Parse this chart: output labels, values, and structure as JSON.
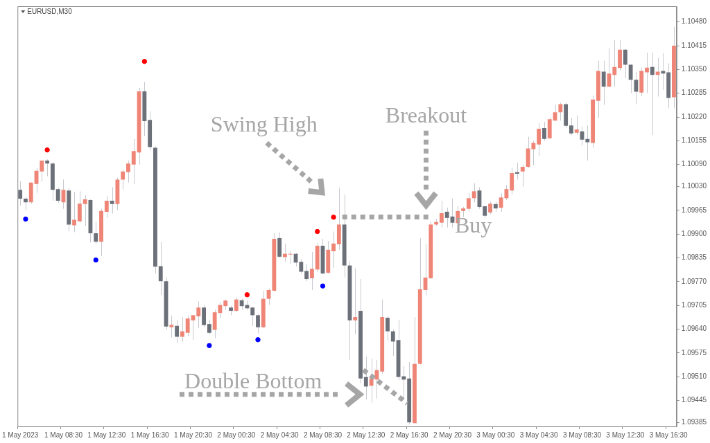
{
  "chart_data": {
    "type": "candlestick",
    "title": "EURUSD,M30",
    "categories": [
      "1 May 2023",
      null,
      null,
      null,
      null,
      null,
      null,
      null,
      "1 May 08:30",
      null,
      null,
      null,
      null,
      null,
      null,
      null,
      "1 May 12:30",
      null,
      null,
      null,
      null,
      null,
      null,
      null,
      "1 May 16:30",
      null,
      null,
      null,
      null,
      null,
      null,
      null,
      "1 May 20:30",
      null,
      null,
      null,
      null,
      null,
      null,
      null,
      "2 May 00:30",
      null,
      null,
      null,
      null,
      null,
      null,
      null,
      "2 May 04:30",
      null,
      null,
      null,
      null,
      null,
      null,
      null,
      "2 May 08:30",
      null,
      null,
      null,
      null,
      null,
      null,
      null,
      "2 May 12:30",
      null,
      null,
      null,
      null,
      null,
      null,
      null,
      "2 May 16:30",
      null,
      null,
      null,
      null,
      null,
      null,
      null,
      "2 May 20:30",
      null,
      null,
      null,
      null,
      null,
      null,
      null,
      "3 May 00:30",
      null,
      null,
      null,
      null,
      null,
      null,
      null,
      "3 May 04:30",
      null,
      null,
      null,
      null,
      null,
      null,
      null,
      "3 May 08:30",
      null,
      null,
      null,
      null,
      null,
      null,
      null,
      "3 May 12:30",
      null,
      null,
      null,
      null,
      null,
      null,
      null,
      "3 May 16:30",
      null
    ],
    "ylim": [
      1.09374,
      1.10523
    ],
    "yticks": [
      {
        "value": 1.1048,
        "label": "1.10480"
      },
      {
        "value": 1.10415,
        "label": "1.10415"
      },
      {
        "value": 1.1035,
        "label": "1.10350"
      },
      {
        "value": 1.10285,
        "label": "1.10285"
      },
      {
        "value": 1.1022,
        "label": "1.10220"
      },
      {
        "value": 1.10155,
        "label": "1.10155"
      },
      {
        "value": 1.1009,
        "label": "1.10090"
      },
      {
        "value": 1.1003,
        "label": "1.10030"
      },
      {
        "value": 1.09965,
        "label": "1.09965"
      },
      {
        "value": 1.099,
        "label": "1.09900"
      },
      {
        "value": 1.09835,
        "label": "1.09835"
      },
      {
        "value": 1.0977,
        "label": "1.09770"
      },
      {
        "value": 1.09705,
        "label": "1.09705"
      },
      {
        "value": 1.0964,
        "label": "1.09640"
      },
      {
        "value": 1.09575,
        "label": "1.09575"
      },
      {
        "value": 1.0951,
        "label": "1.09510"
      },
      {
        "value": 1.09445,
        "label": "1.09445"
      },
      {
        "value": 1.09385,
        "label": "1.09385"
      }
    ],
    "ohlc": [
      [
        1.10021,
        1.10045,
        1.09978,
        1.09997
      ],
      [
        1.09997,
        1.10002,
        1.09965,
        1.09987
      ],
      [
        1.09987,
        1.10041,
        1.09983,
        1.10041
      ],
      [
        1.10037,
        1.1008,
        1.10013,
        1.10073
      ],
      [
        1.10071,
        1.10101,
        1.10043,
        1.10101
      ],
      [
        1.10101,
        1.10104,
        1.10058,
        1.10093
      ],
      [
        1.10093,
        1.10097,
        1.09991,
        1.10021
      ],
      [
        1.10023,
        1.10026,
        1.09985,
        1.09991
      ],
      [
        1.09987,
        1.10049,
        1.09969,
        1.10021
      ],
      [
        1.10019,
        1.10026,
        1.09907,
        1.09926
      ],
      [
        1.09924,
        1.10015,
        1.09905,
        1.09939
      ],
      [
        1.09935,
        1.10017,
        1.09931,
        1.09983
      ],
      [
        1.09982,
        1.10006,
        1.09922,
        1.09995
      ],
      [
        1.09993,
        1.09995,
        1.09877,
        1.09902
      ],
      [
        1.09902,
        1.09933,
        1.09872,
        1.09879
      ],
      [
        1.09879,
        1.09969,
        1.0984,
        1.09963
      ],
      [
        1.09961,
        1.10004,
        1.09944,
        1.09991
      ],
      [
        1.09991,
        1.10028,
        1.09956,
        1.09982
      ],
      [
        1.09982,
        1.10054,
        1.09965,
        1.10049
      ],
      [
        1.10049,
        1.10076,
        1.10021,
        1.10071
      ],
      [
        1.10069,
        1.10101,
        1.10041,
        1.10093
      ],
      [
        1.1009,
        1.1016,
        1.10036,
        1.10127
      ],
      [
        1.10123,
        1.103,
        1.1009,
        1.1029
      ],
      [
        1.1029,
        1.10316,
        1.10168,
        1.10209
      ],
      [
        1.10212,
        1.10236,
        1.10129,
        1.10138
      ],
      [
        1.10136,
        1.1014,
        1.09792,
        1.09811
      ],
      [
        1.09812,
        1.09879,
        1.09734,
        1.09771
      ],
      [
        1.09771,
        1.09781,
        1.09638,
        1.09647
      ],
      [
        1.09645,
        1.09677,
        1.09617,
        1.09652
      ],
      [
        1.09649,
        1.09665,
        1.09602,
        1.09619
      ],
      [
        1.09619,
        1.09673,
        1.09606,
        1.09634
      ],
      [
        1.0963,
        1.09677,
        1.09621,
        1.09669
      ],
      [
        1.09664,
        1.09678,
        1.0961,
        1.09678
      ],
      [
        1.09675,
        1.09716,
        1.09643,
        1.09699
      ],
      [
        1.09699,
        1.09706,
        1.09645,
        1.09651
      ],
      [
        1.09654,
        1.09665,
        1.09625,
        1.0963
      ],
      [
        1.09638,
        1.09693,
        1.09615,
        1.09686
      ],
      [
        1.09684,
        1.09714,
        1.09671,
        1.09706
      ],
      [
        1.09703,
        1.09721,
        1.09693,
        1.09718
      ],
      [
        1.09699,
        1.09704,
        1.09678,
        1.0969
      ],
      [
        1.0969,
        1.09727,
        1.09686,
        1.09721
      ],
      [
        1.09719,
        1.09723,
        1.09693,
        1.09703
      ],
      [
        1.09706,
        1.09718,
        1.09693,
        1.09697
      ],
      [
        1.09699,
        1.09701,
        1.09649,
        1.09678
      ],
      [
        1.09678,
        1.09682,
        1.09628,
        1.09645
      ],
      [
        1.09645,
        1.09744,
        1.09643,
        1.09723
      ],
      [
        1.09723,
        1.09751,
        1.09706,
        1.09747
      ],
      [
        1.09745,
        1.09902,
        1.09742,
        1.09887
      ],
      [
        1.09889,
        1.09904,
        1.09835,
        1.09838
      ],
      [
        1.09837,
        1.09874,
        1.09824,
        1.09846
      ],
      [
        1.09844,
        1.09853,
        1.09818,
        1.09846
      ],
      [
        1.09846,
        1.09848,
        1.09811,
        1.09822
      ],
      [
        1.09824,
        1.09831,
        1.09792,
        1.09797
      ],
      [
        1.09799,
        1.09818,
        1.09771,
        1.09777
      ],
      [
        1.09779,
        1.09851,
        1.09747,
        1.09805
      ],
      [
        1.09803,
        1.09876,
        1.09796,
        1.09868
      ],
      [
        1.09868,
        1.09887,
        1.0979,
        1.09792
      ],
      [
        1.09794,
        1.09881,
        1.09792,
        1.09857
      ],
      [
        1.09853,
        1.09907,
        1.09807,
        1.09874
      ],
      [
        1.09872,
        1.10026,
        1.09857,
        1.09926
      ],
      [
        1.09926,
        1.10008,
        1.09781,
        1.09814
      ],
      [
        1.09814,
        1.09825,
        1.09556,
        1.09664
      ],
      [
        1.09664,
        1.09807,
        1.09625,
        1.09673
      ],
      [
        1.0969,
        1.09777,
        1.09491,
        1.09505
      ],
      [
        1.09509,
        1.09565,
        1.09448,
        1.09483
      ],
      [
        1.09485,
        1.09559,
        1.09439,
        1.09505
      ],
      [
        1.09502,
        1.09556,
        1.0945,
        1.09528
      ],
      [
        1.09524,
        1.09721,
        1.09518,
        1.09673
      ],
      [
        1.09671,
        1.09675,
        1.09608,
        1.09634
      ],
      [
        1.09634,
        1.09639,
        1.09567,
        1.09606
      ],
      [
        1.0961,
        1.09665,
        1.095,
        1.09509
      ],
      [
        1.09511,
        1.09539,
        1.09446,
        1.09502
      ],
      [
        1.09505,
        1.0955,
        1.09379,
        1.09385
      ],
      [
        1.09383,
        1.09673,
        1.09381,
        1.09545
      ],
      [
        1.09545,
        1.09889,
        1.09543,
        1.09749
      ],
      [
        1.09747,
        1.09872,
        1.09732,
        1.09781
      ],
      [
        1.09779,
        1.09935,
        1.09777,
        1.09926
      ],
      [
        1.09926,
        1.09941,
        1.09922,
        1.09933
      ],
      [
        1.09931,
        1.09991,
        1.09918,
        1.09957
      ],
      [
        1.09961,
        1.09972,
        1.09918,
        1.09944
      ],
      [
        1.09948,
        1.09997,
        1.09918,
        1.09931
      ],
      [
        1.0993,
        1.09976,
        1.09924,
        1.09963
      ],
      [
        1.09963,
        1.09974,
        1.09946,
        1.0997
      ],
      [
        1.09969,
        1.10011,
        1.09961,
        1.09998
      ],
      [
        1.09998,
        1.10039,
        1.09987,
        1.10017
      ],
      [
        1.10019,
        1.10028,
        1.09969,
        1.09974
      ],
      [
        1.09976,
        1.09978,
        1.09944,
        1.0995
      ],
      [
        1.09959,
        1.09989,
        1.09954,
        1.09983
      ],
      [
        1.09982,
        1.09989,
        1.09961,
        1.0997
      ],
      [
        1.09972,
        1.10011,
        1.09961,
        1.1
      ],
      [
        1.09998,
        1.10034,
        1.09993,
        1.10023
      ],
      [
        1.10019,
        1.10082,
        1.10008,
        1.10067
      ],
      [
        1.10069,
        1.10095,
        1.10049,
        1.10065
      ],
      [
        1.10071,
        1.1009,
        1.1003,
        1.10084
      ],
      [
        1.10084,
        1.10166,
        1.1008,
        1.10134
      ],
      [
        1.10132,
        1.10155,
        1.10088,
        1.10149
      ],
      [
        1.10145,
        1.10203,
        1.10114,
        1.10188
      ],
      [
        1.1019,
        1.10207,
        1.10155,
        1.1016
      ],
      [
        1.10162,
        1.10218,
        1.1016,
        1.10214
      ],
      [
        1.1021,
        1.10253,
        1.1021,
        1.10233
      ],
      [
        1.10233,
        1.10259,
        1.1021,
        1.10255
      ],
      [
        1.10255,
        1.10259,
        1.1019,
        1.10196
      ],
      [
        1.10197,
        1.10218,
        1.10171,
        1.10175
      ],
      [
        1.10177,
        1.10225,
        1.10171,
        1.10186
      ],
      [
        1.10181,
        1.10194,
        1.10142,
        1.10158
      ],
      [
        1.1016,
        1.10197,
        1.10101,
        1.10151
      ],
      [
        1.10149,
        1.10279,
        1.10136,
        1.10268
      ],
      [
        1.10264,
        1.10374,
        1.10218,
        1.10346
      ],
      [
        1.10344,
        1.10374,
        1.10253,
        1.10303
      ],
      [
        1.10303,
        1.10408,
        1.10302,
        1.10339
      ],
      [
        1.10335,
        1.1043,
        1.10303,
        1.10357
      ],
      [
        1.10354,
        1.1043,
        1.10346,
        1.10404
      ],
      [
        1.10404,
        1.10406,
        1.10326,
        1.10363
      ],
      [
        1.10363,
        1.10365,
        1.10285,
        1.10322
      ],
      [
        1.10322,
        1.10344,
        1.10255,
        1.10289
      ],
      [
        1.10287,
        1.10355,
        1.10277,
        1.10346
      ],
      [
        1.10342,
        1.10396,
        1.10285,
        1.10355
      ],
      [
        1.10357,
        1.10396,
        1.10171,
        1.10335
      ],
      [
        1.10335,
        1.10382,
        1.10276,
        1.10344
      ],
      [
        1.10346,
        1.10395,
        1.10294,
        1.10339
      ],
      [
        1.10342,
        1.10367,
        1.10244,
        1.10272
      ],
      [
        1.10274,
        1.10467,
        1.10244,
        1.10415
      ]
    ],
    "colors": [
      "#6c7079",
      "#6c7079",
      "#ef8576",
      "#ef8576",
      "#ef8576",
      "#6c7079",
      "#6c7079",
      "#6c7079",
      "#ef8576",
      "#6c7079",
      "#ef8576",
      "#ef8576",
      "#ef8576",
      "#6c7079",
      "#6c7079",
      "#ef8576",
      "#ef8576",
      "#6c7079",
      "#ef8576",
      "#ef8576",
      "#ef8576",
      "#ef8576",
      "#ef8576",
      "#6c7079",
      "#6c7079",
      "#6c7079",
      "#6c7079",
      "#6c7079",
      "#ef8576",
      "#6c7079",
      "#ef8576",
      "#ef8576",
      "#ef8576",
      "#ef8576",
      "#6c7079",
      "#6c7079",
      "#ef8576",
      "#ef8576",
      "#ef8576",
      "#6c7079",
      "#ef8576",
      "#6c7079",
      "#6c7079",
      "#6c7079",
      "#6c7079",
      "#ef8576",
      "#ef8576",
      "#ef8576",
      "#6c7079",
      "#ef8576",
      "#ef8576",
      "#6c7079",
      "#6c7079",
      "#6c7079",
      "#ef8576",
      "#ef8576",
      "#6c7079",
      "#ef8576",
      "#ef8576",
      "#ef8576",
      "#6c7079",
      "#6c7079",
      "#ef8576",
      "#6c7079",
      "#6c7079",
      "#ef8576",
      "#ef8576",
      "#ef8576",
      "#6c7079",
      "#6c7079",
      "#6c7079",
      "#6c7079",
      "#6c7079",
      "#ef8576",
      "#ef8576",
      "#ef8576",
      "#ef8576",
      "#ef8576",
      "#ef8576",
      "#6c7079",
      "#6c7079",
      "#ef8576",
      "#ef8576",
      "#ef8576",
      "#ef8576",
      "#6c7079",
      "#6c7079",
      "#ef8576",
      "#6c7079",
      "#ef8576",
      "#ef8576",
      "#ef8576",
      "#6c7079",
      "#ef8576",
      "#ef8576",
      "#ef8576",
      "#ef8576",
      "#6c7079",
      "#ef8576",
      "#ef8576",
      "#ef8576",
      "#6c7079",
      "#6c7079",
      "#ef8576",
      "#6c7079",
      "#6c7079",
      "#ef8576",
      "#ef8576",
      "#6c7079",
      "#ef8576",
      "#ef8576",
      "#ef8576",
      "#6c7079",
      "#6c7079",
      "#6c7079",
      "#ef8576",
      "#ef8576",
      "#6c7079",
      "#ef8576",
      "#6c7079",
      "#6c7079",
      "#ef8576"
    ],
    "series": [
      {
        "type": "scatter",
        "color": "#ff0000",
        "values": [
          null,
          null,
          null,
          null,
          null,
          1.1013,
          null,
          null,
          null,
          null,
          null,
          null,
          null,
          null,
          null,
          null,
          null,
          null,
          null,
          null,
          null,
          null,
          null,
          1.10372,
          null,
          null,
          null,
          null,
          null,
          null,
          null,
          null,
          null,
          null,
          null,
          null,
          null,
          null,
          null,
          null,
          null,
          null,
          1.09734,
          null,
          null,
          null,
          null,
          null,
          null,
          null,
          null,
          null,
          null,
          null,
          null,
          1.09907,
          null,
          null,
          1.09946,
          null,
          null,
          null,
          null,
          null,
          null,
          null,
          null,
          null,
          null,
          null,
          null,
          null,
          null,
          null,
          null,
          null,
          null,
          null,
          null,
          null,
          null,
          null,
          null,
          null,
          null,
          null,
          null,
          null,
          null,
          null,
          null,
          null,
          null,
          null,
          null,
          null,
          null,
          null,
          null,
          null,
          null,
          null,
          null,
          null,
          null,
          null,
          null,
          null,
          null,
          null,
          null,
          null,
          null,
          null,
          null,
          null,
          null,
          null,
          null,
          null,
          null,
          null
        ]
      },
      {
        "type": "scatter",
        "color": "#0000ff",
        "values": [
          null,
          1.09941,
          null,
          null,
          null,
          null,
          null,
          null,
          null,
          null,
          null,
          null,
          null,
          null,
          1.09829,
          null,
          null,
          null,
          null,
          null,
          null,
          null,
          null,
          null,
          null,
          null,
          null,
          null,
          null,
          null,
          null,
          null,
          null,
          null,
          null,
          1.09595,
          null,
          null,
          null,
          null,
          null,
          null,
          null,
          null,
          1.09611,
          null,
          null,
          null,
          null,
          null,
          null,
          null,
          null,
          null,
          null,
          null,
          1.09758,
          null,
          null,
          null,
          null,
          null,
          null,
          null,
          null,
          null,
          null,
          null,
          null,
          null,
          null,
          null,
          null,
          null,
          null,
          null,
          null,
          null,
          null,
          null,
          null,
          null,
          null,
          null,
          null,
          null,
          null,
          null,
          null,
          null,
          null,
          null,
          null,
          null,
          null,
          null,
          null,
          null,
          null,
          null,
          null,
          null,
          null,
          null,
          null,
          null,
          null,
          null,
          null,
          null,
          null,
          null,
          null,
          null,
          null,
          null,
          null,
          null,
          null,
          null,
          null,
          null
        ]
      }
    ],
    "marker": "circle",
    "legend": false,
    "annotations": [
      "Swing High",
      "Breakout",
      "Buy",
      "Double Bottom"
    ]
  }
}
